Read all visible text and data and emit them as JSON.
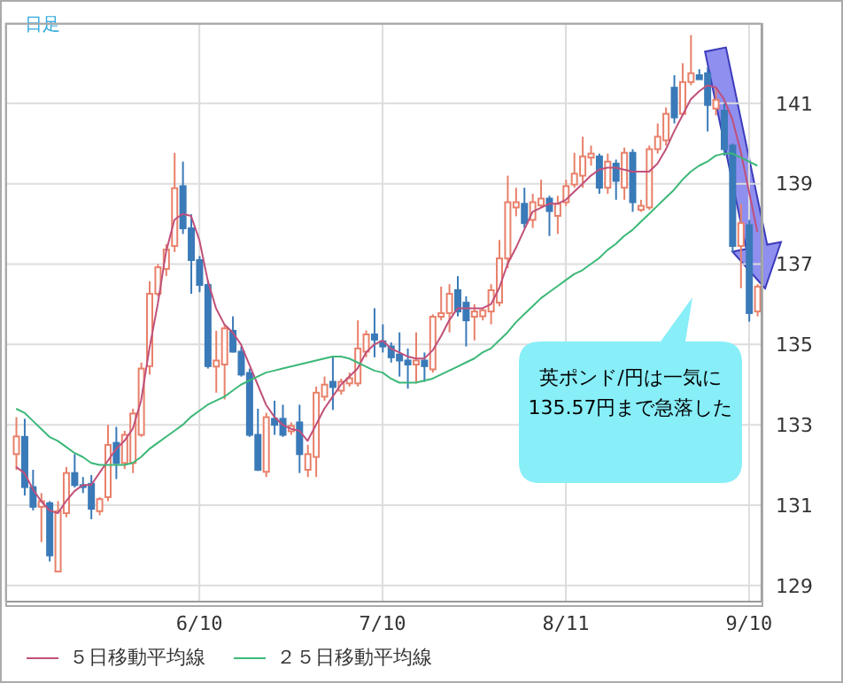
{
  "chart_data": {
    "type": "candlestick",
    "title": "日足",
    "categories": [
      null,
      null,
      null,
      null,
      null,
      null,
      null,
      null,
      null,
      null,
      null,
      null,
      null,
      null,
      null,
      null,
      null,
      null,
      null,
      null,
      null,
      null,
      "6/10",
      null,
      null,
      null,
      null,
      null,
      null,
      null,
      null,
      null,
      null,
      null,
      null,
      null,
      null,
      null,
      null,
      null,
      null,
      null,
      null,
      null,
      "7/10",
      null,
      null,
      null,
      null,
      null,
      null,
      null,
      null,
      null,
      null,
      null,
      null,
      null,
      null,
      null,
      null,
      null,
      null,
      null,
      null,
      null,
      "8/11",
      null,
      null,
      null,
      null,
      null,
      null,
      null,
      null,
      null,
      null,
      null,
      null,
      null,
      null,
      null,
      null,
      null,
      null,
      null,
      null,
      null,
      "9/10",
      null
    ],
    "ohlc": [
      [
        132.27,
        133.19,
        131.88,
        132.71
      ],
      [
        132.7,
        133.15,
        131.24,
        131.45
      ],
      [
        131.45,
        131.88,
        130.87,
        130.96
      ],
      [
        130.96,
        131.3,
        130.08,
        131.1
      ],
      [
        131.05,
        131.1,
        129.6,
        129.75
      ],
      [
        129.35,
        131.1,
        129.33,
        130.85
      ],
      [
        130.8,
        131.95,
        130.7,
        131.8
      ],
      [
        131.8,
        132.27,
        131.44,
        131.5
      ],
      [
        131.5,
        131.7,
        131.3,
        131.45
      ],
      [
        131.53,
        131.75,
        130.65,
        130.91
      ],
      [
        130.85,
        131.2,
        130.75,
        131.15
      ],
      [
        131.2,
        133.0,
        131.1,
        132.5
      ],
      [
        132.55,
        132.95,
        131.65,
        132.05
      ],
      [
        132.05,
        132.85,
        131.9,
        132.75
      ],
      [
        132.05,
        133.4,
        131.8,
        133.28
      ],
      [
        132.75,
        134.55,
        132.7,
        134.4
      ],
      [
        134.46,
        136.57,
        134.25,
        136.26
      ],
      [
        136.26,
        137.0,
        136.2,
        136.92
      ],
      [
        136.88,
        137.5,
        136.7,
        137.36
      ],
      [
        137.45,
        139.77,
        137.3,
        138.89
      ],
      [
        138.94,
        139.55,
        137.75,
        137.89
      ],
      [
        137.89,
        138.24,
        136.26,
        137.1
      ],
      [
        137.1,
        137.2,
        136.3,
        136.48
      ],
      [
        136.48,
        136.6,
        134.4,
        134.46
      ],
      [
        134.45,
        135.34,
        133.8,
        134.6
      ],
      [
        134.5,
        135.5,
        133.63,
        135.4
      ],
      [
        135.34,
        135.7,
        134.8,
        134.82
      ],
      [
        134.82,
        134.95,
        134.2,
        134.25
      ],
      [
        134.29,
        134.4,
        132.7,
        132.75
      ],
      [
        132.75,
        133.4,
        131.85,
        131.88
      ],
      [
        131.83,
        133.3,
        131.7,
        133.19
      ],
      [
        133.15,
        133.6,
        132.75,
        133.0
      ],
      [
        133.15,
        133.5,
        132.7,
        132.75
      ],
      [
        132.84,
        133.06,
        132.75,
        132.97
      ],
      [
        133.06,
        133.5,
        131.8,
        132.27
      ],
      [
        131.88,
        132.5,
        131.7,
        132.27
      ],
      [
        132.2,
        133.95,
        131.7,
        133.8
      ],
      [
        133.7,
        134.2,
        133.6,
        134.0
      ],
      [
        134.07,
        134.68,
        133.37,
        133.94
      ],
      [
        133.85,
        134.15,
        133.75,
        134.07
      ],
      [
        134.03,
        134.3,
        133.95,
        134.16
      ],
      [
        134.03,
        135.6,
        133.95,
        134.9
      ],
      [
        134.82,
        135.35,
        134.68,
        135.25
      ],
      [
        135.25,
        135.9,
        134.68,
        135.12
      ],
      [
        135.08,
        135.5,
        134.8,
        134.95
      ],
      [
        134.95,
        135.05,
        134.55,
        134.68
      ],
      [
        134.75,
        135.3,
        134.2,
        134.6
      ],
      [
        134.6,
        134.9,
        133.9,
        134.5
      ],
      [
        134.5,
        135.3,
        134.03,
        134.6
      ],
      [
        134.6,
        134.8,
        134.07,
        134.46
      ],
      [
        134.38,
        135.75,
        134.3,
        135.69
      ],
      [
        135.69,
        136.44,
        135.6,
        135.78
      ],
      [
        135.78,
        136.5,
        135.3,
        136.26
      ],
      [
        136.35,
        136.7,
        135.7,
        135.82
      ],
      [
        136.04,
        136.2,
        134.95,
        135.6
      ],
      [
        135.69,
        136.0,
        135.1,
        135.82
      ],
      [
        135.7,
        135.9,
        135.6,
        135.85
      ],
      [
        135.82,
        136.5,
        135.5,
        136.35
      ],
      [
        136.04,
        137.6,
        135.95,
        137.14
      ],
      [
        137.14,
        139.2,
        136.9,
        138.54
      ],
      [
        138.41,
        138.9,
        138.19,
        138.54
      ],
      [
        138.5,
        138.9,
        137.9,
        138.02
      ],
      [
        138.1,
        138.75,
        137.9,
        138.54
      ],
      [
        138.46,
        139.1,
        138.4,
        138.63
      ],
      [
        138.63,
        138.7,
        137.7,
        138.32
      ],
      [
        138.2,
        138.7,
        137.75,
        138.5
      ],
      [
        138.54,
        139.1,
        138.45,
        138.94
      ],
      [
        138.98,
        139.77,
        138.9,
        139.25
      ],
      [
        139.2,
        140.17,
        138.9,
        139.68
      ],
      [
        139.65,
        139.95,
        139.45,
        139.75
      ],
      [
        139.68,
        139.75,
        138.75,
        138.9
      ],
      [
        138.9,
        139.75,
        138.75,
        139.55
      ],
      [
        139.5,
        139.6,
        138.6,
        139.07
      ],
      [
        138.9,
        139.9,
        138.6,
        139.77
      ],
      [
        139.77,
        139.86,
        138.3,
        138.54
      ],
      [
        138.35,
        138.6,
        138.3,
        138.45
      ],
      [
        138.41,
        139.95,
        138.35,
        139.86
      ],
      [
        139.86,
        140.5,
        139.75,
        140.17
      ],
      [
        140.08,
        140.9,
        139.95,
        140.74
      ],
      [
        141.39,
        141.7,
        140.5,
        140.65
      ],
      [
        140.74,
        142.0,
        140.7,
        141.53
      ],
      [
        141.53,
        142.7,
        141.45,
        141.75
      ],
      [
        141.7,
        141.85,
        141.6,
        141.6
      ],
      [
        141.75,
        141.9,
        140.3,
        140.96
      ],
      [
        140.87,
        141.4,
        140.7,
        141.09
      ],
      [
        140.82,
        141.0,
        139.7,
        139.86
      ],
      [
        139.95,
        140.0,
        137.3,
        137.45
      ],
      [
        137.45,
        138.5,
        136.4,
        138.02
      ],
      [
        137.97,
        138.1,
        135.57,
        135.78
      ],
      [
        135.82,
        136.5,
        135.7,
        136.44
      ]
    ],
    "colors": [
      "#e8806a",
      "#3a7ab8",
      "#3a7ab8",
      "#e8806a",
      "#3a7ab8",
      "#e8806a",
      "#e8806a",
      "#3a7ab8",
      "#3a7ab8",
      "#3a7ab8",
      "#e8806a",
      "#e8806a",
      "#3a7ab8",
      "#e8806a",
      "#e8806a",
      "#e8806a",
      "#e8806a",
      "#e8806a",
      "#e8806a",
      "#e8806a",
      "#3a7ab8",
      "#3a7ab8",
      "#3a7ab8",
      "#3a7ab8",
      "#e8806a",
      "#e8806a",
      "#3a7ab8",
      "#3a7ab8",
      "#3a7ab8",
      "#3a7ab8",
      "#e8806a",
      "#3a7ab8",
      "#3a7ab8",
      "#e8806a",
      "#3a7ab8",
      "#e8806a",
      "#e8806a",
      "#e8806a",
      "#3a7ab8",
      "#e8806a",
      "#e8806a",
      "#e8806a",
      "#e8806a",
      "#3a7ab8",
      "#3a7ab8",
      "#3a7ab8",
      "#3a7ab8",
      "#3a7ab8",
      "#e8806a",
      "#3a7ab8",
      "#e8806a",
      "#e8806a",
      "#e8806a",
      "#3a7ab8",
      "#3a7ab8",
      "#e8806a",
      "#e8806a",
      "#e8806a",
      "#e8806a",
      "#e8806a",
      "#e8806a",
      "#3a7ab8",
      "#e8806a",
      "#e8806a",
      "#3a7ab8",
      "#e8806a",
      "#e8806a",
      "#e8806a",
      "#e8806a",
      "#e8806a",
      "#3a7ab8",
      "#e8806a",
      "#3a7ab8",
      "#e8806a",
      "#3a7ab8",
      "#e8806a",
      "#e8806a",
      "#e8806a",
      "#e8806a",
      "#3a7ab8",
      "#e8806a",
      "#e8806a",
      "#3a7ab8",
      "#3a7ab8",
      "#e8806a",
      "#3a7ab8",
      "#3a7ab8",
      "#e8806a",
      "#3a7ab8",
      "#e8806a"
    ],
    "series": [
      {
        "name": "５日移動平均線",
        "type": "line",
        "color": "#c0507a",
        "values": [
          131.95,
          131.8,
          131.4,
          131.1,
          130.87,
          130.8,
          131.1,
          131.35,
          131.5,
          131.5,
          131.8,
          132.1,
          132.4,
          132.6,
          132.9,
          133.6,
          134.9,
          136.0,
          137.3,
          138.1,
          138.25,
          138.2,
          137.6,
          136.6,
          135.9,
          135.5,
          135.3,
          135.0,
          134.5,
          134.0,
          133.5,
          133.2,
          133.0,
          132.9,
          132.85,
          132.6,
          133.0,
          133.4,
          133.7,
          134.0,
          134.2,
          134.4,
          134.8,
          135.0,
          135.1,
          134.9,
          134.8,
          134.7,
          134.65,
          134.65,
          134.85,
          135.2,
          135.6,
          135.9,
          135.9,
          135.9,
          135.9,
          136.0,
          136.4,
          137.0,
          137.4,
          137.85,
          138.3,
          138.4,
          138.5,
          138.5,
          138.6,
          138.8,
          139.0,
          139.2,
          139.35,
          139.4,
          139.4,
          139.35,
          139.3,
          139.3,
          139.3,
          139.5,
          139.85,
          140.3,
          140.7,
          141.1,
          141.3,
          141.45,
          141.4,
          141.1,
          140.6,
          139.8,
          138.8,
          137.8
        ]
      },
      {
        "name": "２５日移動平均線",
        "type": "line",
        "color": "#3cb878",
        "values": [
          133.4,
          133.3,
          133.1,
          132.9,
          132.7,
          132.6,
          132.45,
          132.3,
          132.2,
          132.05,
          132.0,
          132.0,
          132.0,
          132.0,
          132.05,
          132.2,
          132.4,
          132.55,
          132.7,
          132.85,
          133.0,
          133.2,
          133.35,
          133.5,
          133.6,
          133.7,
          133.85,
          134.0,
          134.1,
          134.2,
          134.3,
          134.35,
          134.4,
          134.45,
          134.5,
          134.55,
          134.6,
          134.65,
          134.7,
          134.7,
          134.65,
          134.55,
          134.45,
          134.35,
          134.3,
          134.15,
          134.05,
          134.05,
          134.05,
          134.1,
          134.15,
          134.25,
          134.35,
          134.45,
          134.55,
          134.65,
          134.8,
          134.9,
          135.1,
          135.3,
          135.55,
          135.75,
          135.95,
          136.15,
          136.3,
          136.45,
          136.6,
          136.75,
          136.85,
          137.0,
          137.15,
          137.35,
          137.5,
          137.7,
          137.85,
          138.05,
          138.25,
          138.45,
          138.65,
          138.85,
          139.1,
          139.3,
          139.45,
          139.55,
          139.7,
          139.75,
          139.75,
          139.65,
          139.55,
          139.45
        ]
      }
    ],
    "ylim": [
      128.6,
      143
    ],
    "yticks": [
      129,
      131,
      133,
      135,
      137,
      139,
      141
    ],
    "grid": true,
    "legend": "bottom",
    "marker": "none",
    "annotations": [
      "英ポンド/円は一気に135.57円まで急落した"
    ]
  }
}
